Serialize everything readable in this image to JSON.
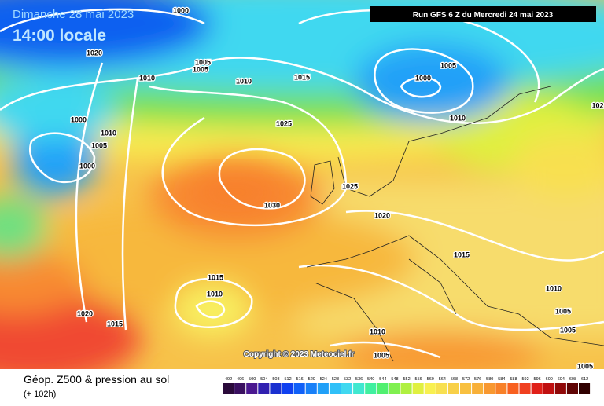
{
  "header": {
    "date": "Dimanche 28 mai 2023",
    "time": "14:00 locale",
    "run": "Run GFS 6 Z du Mercredi 24 mai 2023"
  },
  "copyright": "Copyright © 2023 Meteociel.fr",
  "footer": {
    "title": "Géop. Z500 & pression au sol",
    "lead": "(+ 102h)"
  },
  "isobar_labels": [
    "1000",
    "1020",
    "1005",
    "1005",
    "1010",
    "1010",
    "1015",
    "1005",
    "1000",
    "1010",
    "1000",
    "1010",
    "1005",
    "1000",
    "1025",
    "1030",
    "1025",
    "1020",
    "1015",
    "1015",
    "1010",
    "1020",
    "1015",
    "1010",
    "1005",
    "1010",
    "1005",
    "1005",
    "1005",
    "102"
  ],
  "colorbar": {
    "values": [
      492,
      496,
      500,
      504,
      508,
      512,
      516,
      520,
      524,
      528,
      532,
      536,
      540,
      544,
      548,
      552,
      556,
      560,
      564,
      568,
      572,
      576,
      580,
      584,
      588,
      592,
      596,
      600,
      604,
      608,
      612
    ],
    "colors": [
      "#2a0a3a",
      "#3a1060",
      "#4a1890",
      "#3020b0",
      "#1a30d0",
      "#1040f0",
      "#1060f8",
      "#1880f8",
      "#20a0f8",
      "#30c0f8",
      "#40d8f0",
      "#40e8d0",
      "#40f0a0",
      "#50f070",
      "#80f050",
      "#b0f040",
      "#e0f040",
      "#f8f050",
      "#f8e050",
      "#f8d048",
      "#f8c040",
      "#f8b038",
      "#f89830",
      "#f88028",
      "#f86020",
      "#f04020",
      "#e02018",
      "#c01010",
      "#900808",
      "#600404",
      "#300000"
    ]
  }
}
